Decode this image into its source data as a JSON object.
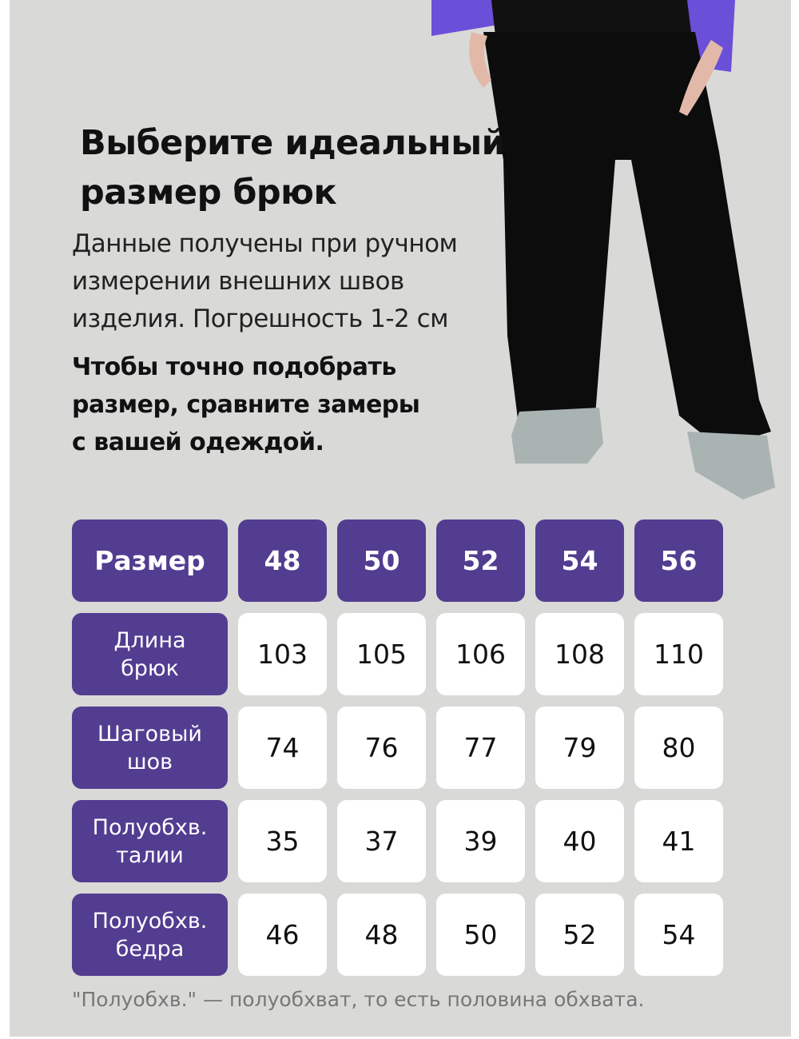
{
  "title": [
    "Выберите идеальный",
    "размер брюк"
  ],
  "description": [
    "Данные получены при ручном",
    "измерении внешних швов",
    "изделия. Погрешность 1-2 см"
  ],
  "tip": [
    "Чтобы точно подобрать",
    "размер, сравните замеры",
    "с вашей одеждой."
  ],
  "colors": {
    "accent": "#523d91",
    "background": "#d9d9d7",
    "cell": "#ffffff"
  },
  "table": {
    "header_label": "Размер",
    "sizes": [
      "48",
      "50",
      "52",
      "54",
      "56"
    ],
    "rows": [
      {
        "label": [
          "Длина",
          "брюк"
        ],
        "values": [
          "103",
          "105",
          "106",
          "108",
          "110"
        ]
      },
      {
        "label": [
          "Шаговый",
          "шов"
        ],
        "values": [
          "74",
          "76",
          "77",
          "79",
          "80"
        ]
      },
      {
        "label": [
          "Полуобхв.",
          "талии"
        ],
        "values": [
          "35",
          "37",
          "39",
          "40",
          "41"
        ]
      },
      {
        "label": [
          "Полуобхв.",
          "бедра"
        ],
        "values": [
          "46",
          "48",
          "50",
          "52",
          "54"
        ]
      }
    ]
  },
  "footnote": "\"Полуобхв.\" — полуобхват, то есть половина обхвата."
}
